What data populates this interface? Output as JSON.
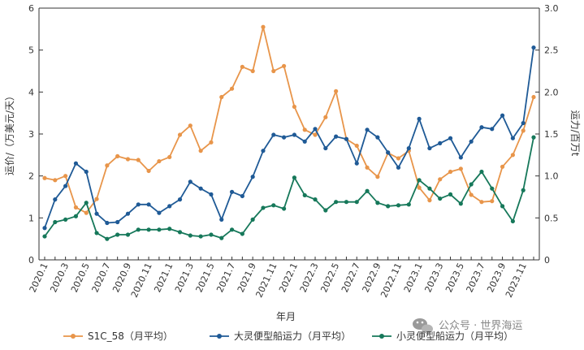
{
  "chart_data": {
    "type": "line",
    "title": "",
    "xlabel": "年月",
    "ylabel_left": "运价/（万美元/天）",
    "ylabel_right": "运力/百万t",
    "ylim_left": [
      0,
      6
    ],
    "ylim_right": [
      0,
      3.0
    ],
    "yticks_left": [
      "0",
      "1",
      "2",
      "3",
      "4",
      "5",
      "6"
    ],
    "yticks_right": [
      "0",
      "0.5",
      "1.0",
      "1.5",
      "2.0",
      "2.5",
      "3.0"
    ],
    "x": [
      "2020.1",
      "2020.2",
      "2020.3",
      "2020.4",
      "2020.5",
      "2020.6",
      "2020.7",
      "2020.8",
      "2020.9",
      "2020.10",
      "2020.11",
      "2020.12",
      "2021.1",
      "2021.2",
      "2021.3",
      "2021.4",
      "2021.5",
      "2021.6",
      "2021.7",
      "2021.8",
      "2021.9",
      "2021.10",
      "2021.11",
      "2021.12",
      "2022.1",
      "2022.2",
      "2022.3",
      "2022.4",
      "2022.5",
      "2022.6",
      "2022.7",
      "2022.8",
      "2022.9",
      "2022.10",
      "2022.11",
      "2022.12",
      "2023.1",
      "2023.2",
      "2023.3",
      "2023.4",
      "2023.5",
      "2023.6",
      "2023.7",
      "2023.8",
      "2023.9",
      "2023.10",
      "2023.11",
      "2023.12"
    ],
    "xtick_labels": [
      "2020.1",
      "2020.3",
      "2020.5",
      "2020.7",
      "2020.9",
      "2020.11",
      "2021.1",
      "2021.3",
      "2021.5",
      "2021.7",
      "2021.9",
      "2021.11",
      "2022.1",
      "2022.3",
      "2022.5",
      "2022.7",
      "2022.9",
      "2022.11",
      "2023.1",
      "2023.3",
      "2023.5",
      "2023.7",
      "2023.9",
      "2023.11"
    ],
    "series": [
      {
        "name": "S1C_58（月平均）",
        "axis": "left",
        "color": "#e8954a",
        "values": [
          1.95,
          1.9,
          2.0,
          1.25,
          1.12,
          1.45,
          2.25,
          2.47,
          2.4,
          2.38,
          2.12,
          2.35,
          2.45,
          2.98,
          3.2,
          2.6,
          2.8,
          3.88,
          4.08,
          4.6,
          4.5,
          5.55,
          4.5,
          4.62,
          3.65,
          3.1,
          2.98,
          3.4,
          4.02,
          2.88,
          2.72,
          2.2,
          1.98,
          2.55,
          2.42,
          2.6,
          1.72,
          1.42,
          1.92,
          2.1,
          2.17,
          1.55,
          1.38,
          1.4,
          2.22,
          2.5,
          3.08,
          3.88
        ]
      },
      {
        "name": "大灵便型船运力（月平均）",
        "axis": "right",
        "color": "#1f5a96",
        "values": [
          0.38,
          0.72,
          0.88,
          1.15,
          1.05,
          0.55,
          0.44,
          0.45,
          0.55,
          0.66,
          0.66,
          0.56,
          0.64,
          0.72,
          0.93,
          0.85,
          0.78,
          0.48,
          0.81,
          0.76,
          0.99,
          1.3,
          1.49,
          1.46,
          1.49,
          1.41,
          1.56,
          1.33,
          1.47,
          1.44,
          1.15,
          1.55,
          1.46,
          1.28,
          1.1,
          1.33,
          1.68,
          1.33,
          1.39,
          1.45,
          1.22,
          1.41,
          1.58,
          1.56,
          1.72,
          1.45,
          1.63,
          2.53
        ]
      },
      {
        "name": "小灵便型船运力（月平均）",
        "axis": "right",
        "color": "#16785a",
        "values": [
          0.28,
          0.45,
          0.48,
          0.52,
          0.68,
          0.32,
          0.25,
          0.3,
          0.3,
          0.36,
          0.36,
          0.36,
          0.37,
          0.33,
          0.29,
          0.28,
          0.3,
          0.26,
          0.36,
          0.31,
          0.48,
          0.62,
          0.65,
          0.61,
          0.98,
          0.77,
          0.72,
          0.59,
          0.69,
          0.69,
          0.69,
          0.82,
          0.68,
          0.64,
          0.65,
          0.66,
          0.95,
          0.85,
          0.73,
          0.78,
          0.67,
          0.9,
          1.05,
          0.85,
          0.64,
          0.46,
          0.83,
          1.46
        ]
      }
    ],
    "grid": false,
    "legend_position": "bottom"
  },
  "watermark": {
    "text": "公众号 · 世界海运",
    "icon": "wechat-icon"
  }
}
